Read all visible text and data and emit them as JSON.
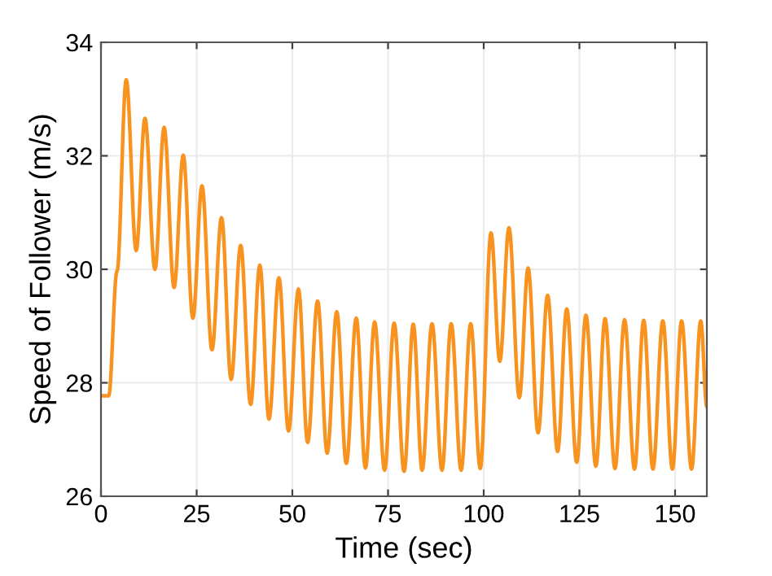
{
  "chart_data": {
    "type": "line",
    "xlabel": "Time (sec)",
    "ylabel": "Speed of Follower (m/s)",
    "xlim": [
      0,
      158.3
    ],
    "ylim": [
      26,
      34
    ],
    "xticks": [
      0,
      25,
      50,
      75,
      100,
      125,
      150
    ],
    "yticks": [
      26,
      28,
      30,
      32,
      34
    ],
    "grid": true,
    "line_style": "solid",
    "marker": "none",
    "series": [
      {
        "color": "#f7931e",
        "x": [
          0,
          2.0,
          4.2,
          6.6,
          9.2,
          11.5,
          14.1,
          16.5,
          19.1,
          21.5,
          24.0,
          26.4,
          29.0,
          31.5,
          34.0,
          36.5,
          39.1,
          41.5,
          43.9,
          46.5,
          49.0,
          51.6,
          54.0,
          56.6,
          59.1,
          61.6,
          64.1,
          66.7,
          69.1,
          71.5,
          74.1,
          76.6,
          79.2,
          81.6,
          83.9,
          86.5,
          89.1,
          91.5,
          94.1,
          96.6,
          99.1,
          101.9,
          104.2,
          106.6,
          109.3,
          111.6,
          114.2,
          116.7,
          119.3,
          121.7,
          124.3,
          126.7,
          129.3,
          131.7,
          134.3,
          136.8,
          139.4,
          141.8,
          144.2,
          146.8,
          149.3,
          151.7,
          154.3,
          156.7,
          158.3
        ],
        "values": [
          27.77,
          27.77,
          29.97,
          33.34,
          30.33,
          32.66,
          30.0,
          32.5,
          29.68,
          32.01,
          29.14,
          31.47,
          28.58,
          30.91,
          28.06,
          30.42,
          27.62,
          30.07,
          27.36,
          29.85,
          27.15,
          29.65,
          26.95,
          29.44,
          26.76,
          29.25,
          26.58,
          29.14,
          26.5,
          29.07,
          26.46,
          29.05,
          26.44,
          29.03,
          26.46,
          29.04,
          26.46,
          29.04,
          26.46,
          29.04,
          26.49,
          30.64,
          28.38,
          30.73,
          27.74,
          30.02,
          27.12,
          29.54,
          26.79,
          29.3,
          26.6,
          29.19,
          26.53,
          29.13,
          26.49,
          29.11,
          26.48,
          29.1,
          26.48,
          29.09,
          26.48,
          29.09,
          26.48,
          29.09,
          27.58
        ]
      }
    ]
  }
}
